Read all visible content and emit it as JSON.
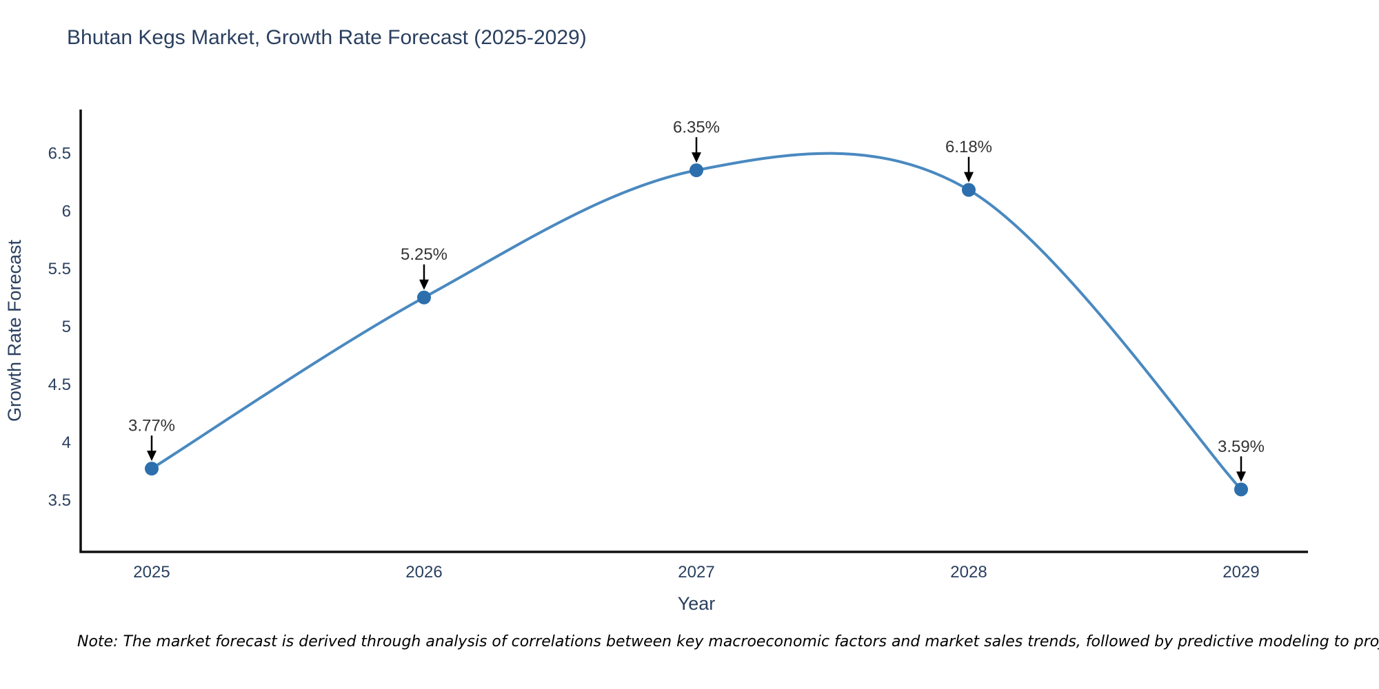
{
  "chart_data": {
    "type": "line",
    "title": "Bhutan Kegs Market, Growth Rate Forecast (2025-2029)",
    "xlabel": "Year",
    "ylabel": "Growth Rate Forecast",
    "categories": [
      "2025",
      "2026",
      "2027",
      "2028",
      "2029"
    ],
    "values": [
      3.77,
      5.25,
      6.35,
      6.18,
      3.59
    ],
    "point_labels": [
      "3.77%",
      "5.25%",
      "6.35%",
      "6.18%",
      "3.59%"
    ],
    "y_ticks": [
      "3.5",
      "4",
      "4.5",
      "5",
      "5.5",
      "6",
      "6.5"
    ],
    "ylim": [
      3.05,
      6.875
    ],
    "line_shape": "spline",
    "grid": "off",
    "legend": "none",
    "note": "Note: The market forecast is derived through analysis of correlations between key macroeconomic factors and market sales trends, followed by predictive modeling to project future sales"
  },
  "colors": {
    "line": "#4a89c0",
    "marker": "#2d6fad",
    "axis": "#111111",
    "heading_text": "#2a3f5f",
    "tick_text": "#2a3f5f",
    "annotation_text": "#333333",
    "arrow": "#000000",
    "note_text": "#000000",
    "background": "#ffffff"
  }
}
